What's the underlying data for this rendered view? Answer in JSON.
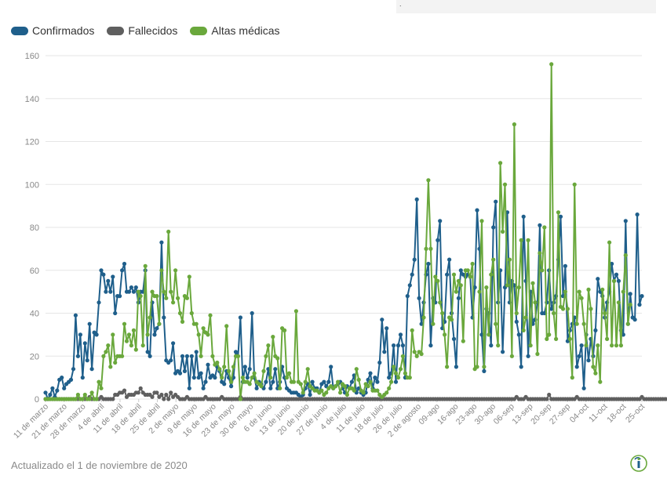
{
  "top_box_text": ".",
  "footer": "Actualizado el 1 de noviembre de 2020",
  "logo_icon": "health-ministry-logo-icon",
  "colors": {
    "confirmados": "#1f5f8b",
    "fallecidos": "#5f5f5f",
    "altas": "#6aa83c",
    "grid": "#e6e6e6",
    "tick": "#888888"
  },
  "chart_data": {
    "type": "line",
    "title": "",
    "xlabel": "",
    "ylabel": "",
    "ylim": [
      0,
      160
    ],
    "yticks": [
      0,
      20,
      40,
      60,
      80,
      100,
      120,
      140,
      160
    ],
    "grid": "horizontal",
    "legend_position": "top-left",
    "x_tick_labels": [
      "11 de marzo",
      "21 de marzo",
      "28 de marzo",
      "4 de abril",
      "11 de abril",
      "18 de abril",
      "25 de abril",
      "2 de mayo",
      "9 de mayo",
      "16 de mayo",
      "23 de mayo",
      "30 de mayo",
      "6 de junio",
      "13 de junio",
      "20 de junio",
      "27 de junio",
      "4 de julio",
      "11 de julio",
      "18 de julio",
      "26 de julio",
      "2 de agosto",
      "09-ago",
      "16-ago",
      "23-ago",
      "30-ago",
      "06-sep",
      "13-sep",
      "20-sep",
      "27-sep",
      "04-oct",
      "11-oct",
      "18-oct",
      "25-oct"
    ],
    "series": [
      {
        "name": "Confirmados",
        "values": [
          3,
          0,
          2,
          5,
          1,
          4,
          9,
          10,
          5,
          7,
          8,
          9,
          14,
          39,
          20,
          30,
          10,
          26,
          18,
          35,
          14,
          31,
          30,
          45,
          60,
          58,
          50,
          55,
          50,
          57,
          40,
          48,
          48,
          60,
          63,
          50,
          50,
          52,
          50,
          52,
          45,
          50,
          50,
          60,
          22,
          20,
          45,
          30,
          33,
          35,
          73,
          38,
          18,
          17,
          18,
          26,
          12,
          13,
          12,
          20,
          13,
          20,
          5,
          20,
          10,
          22,
          10,
          12,
          5,
          8,
          16,
          10,
          11,
          10,
          15,
          13,
          8,
          7,
          13,
          10,
          6,
          10,
          22,
          20,
          38,
          8,
          15,
          10,
          14,
          40,
          10,
          5,
          8,
          7,
          5,
          8,
          14,
          5,
          8,
          14,
          5,
          8,
          15,
          10,
          5,
          4,
          3,
          3,
          3,
          2,
          1,
          2,
          5,
          7,
          2,
          8,
          5,
          5,
          3,
          7,
          8,
          6,
          8,
          15,
          5,
          6,
          7,
          8,
          5,
          3,
          6,
          5,
          8,
          11,
          3,
          5,
          3,
          2,
          3,
          9,
          12,
          5,
          10,
          8,
          17,
          37,
          22,
          33,
          10,
          12,
          25,
          8,
          25,
          30,
          25,
          10,
          48,
          53,
          58,
          65,
          93,
          47,
          35,
          45,
          58,
          63,
          25,
          47,
          45,
          74,
          83,
          33,
          36,
          58,
          65,
          40,
          28,
          15,
          47,
          60,
          58,
          57,
          58,
          57,
          38,
          52,
          88,
          70,
          30,
          13,
          42,
          40,
          25,
          80,
          92,
          45,
          60,
          22,
          52,
          87,
          45,
          55,
          53,
          36,
          30,
          15,
          85,
          55,
          20,
          50,
          35,
          37,
          45,
          81,
          40,
          40,
          45,
          60,
          42,
          45,
          48,
          65,
          85,
          48,
          62,
          27,
          32,
          35,
          38,
          15,
          20,
          25,
          5,
          30,
          18,
          28,
          20,
          32,
          56,
          50,
          48,
          38,
          45,
          50,
          63,
          55,
          58,
          55,
          32,
          30,
          83,
          35,
          49,
          38,
          37,
          86,
          44,
          48
        ]
      },
      {
        "name": "Fallecidos",
        "values": [
          0,
          0,
          0,
          0,
          0,
          0,
          0,
          0,
          0,
          0,
          0,
          0,
          0,
          0,
          0,
          0,
          0,
          0,
          0,
          1,
          0,
          0,
          0,
          0,
          1,
          0,
          0,
          0,
          0,
          0,
          2,
          2,
          3,
          3,
          4,
          1,
          2,
          2,
          2,
          3,
          3,
          5,
          3,
          2,
          2,
          2,
          1,
          3,
          3,
          1,
          2,
          0,
          2,
          0,
          3,
          1,
          2,
          1,
          0,
          0,
          0,
          1,
          0,
          0,
          0,
          0,
          0,
          0,
          0,
          1,
          0,
          0,
          0,
          0,
          0,
          0,
          1,
          0,
          0,
          0,
          0,
          0,
          0,
          0,
          1,
          0,
          0,
          0,
          0,
          0,
          0,
          0,
          0,
          0,
          0,
          0,
          0,
          0,
          0,
          0,
          0,
          0,
          0,
          0,
          0,
          0,
          0,
          0,
          0,
          0,
          0,
          0,
          0,
          0,
          0,
          0,
          0,
          0,
          0,
          0,
          0,
          0,
          0,
          0,
          0,
          0,
          0,
          0,
          0,
          0,
          0,
          0,
          0,
          0,
          0,
          0,
          0,
          0,
          0,
          0,
          0,
          0,
          0,
          0,
          0,
          0,
          0,
          0,
          0,
          0,
          0,
          0,
          0,
          0,
          0,
          0,
          0,
          0,
          0,
          0,
          0,
          0,
          0,
          0,
          0,
          0,
          0,
          0,
          0,
          0,
          0,
          0,
          0,
          0,
          0,
          0,
          0,
          0,
          0,
          0,
          0,
          0,
          0,
          0,
          0,
          0,
          0,
          0,
          0,
          0,
          0,
          0,
          0,
          0,
          0,
          0,
          0,
          0,
          0,
          0,
          0,
          0,
          0,
          1,
          0,
          0,
          0,
          1,
          0,
          0,
          0,
          0,
          0,
          0,
          0,
          0,
          0,
          2,
          0,
          0,
          0,
          0,
          0,
          0,
          0,
          0,
          0,
          0,
          0,
          1,
          0,
          0,
          0,
          0,
          0,
          0,
          0,
          0,
          0,
          0,
          0,
          0,
          0,
          0,
          0,
          0,
          0,
          0,
          0,
          0,
          0,
          0,
          0,
          0,
          0,
          0,
          0,
          1,
          0,
          0,
          0,
          0,
          0,
          0,
          0,
          0,
          0,
          0,
          0
        ]
      },
      {
        "name": "Altas médicas",
        "values": [
          0,
          0,
          0,
          0,
          0,
          0,
          0,
          0,
          0,
          0,
          0,
          0,
          0,
          0,
          2,
          0,
          0,
          2,
          0,
          0,
          3,
          0,
          0,
          8,
          5,
          20,
          22,
          25,
          15,
          30,
          17,
          20,
          20,
          20,
          35,
          27,
          30,
          25,
          32,
          23,
          50,
          48,
          25,
          62,
          30,
          38,
          50,
          48,
          48,
          35,
          60,
          50,
          47,
          78,
          50,
          45,
          60,
          47,
          40,
          36,
          48,
          47,
          57,
          40,
          35,
          35,
          30,
          20,
          33,
          31,
          30,
          39,
          20,
          16,
          17,
          14,
          10,
          15,
          34,
          13,
          8,
          15,
          20,
          20,
          0,
          10,
          8,
          8,
          7,
          10,
          12,
          8,
          7,
          6,
          13,
          20,
          25,
          10,
          29,
          20,
          19,
          5,
          33,
          32,
          10,
          12,
          8,
          8,
          41,
          8,
          7,
          3,
          8,
          14,
          6,
          5,
          4,
          4,
          3,
          4,
          2,
          3,
          5,
          6,
          5,
          6,
          8,
          3,
          7,
          6,
          2,
          5,
          5,
          4,
          14,
          9,
          4,
          3,
          7,
          6,
          8,
          4,
          4,
          4,
          2,
          1,
          2,
          3,
          5,
          8,
          15,
          12,
          10,
          14,
          20,
          12,
          10,
          10,
          32,
          22,
          20,
          22,
          21,
          38,
          70,
          102,
          70,
          35,
          57,
          55,
          45,
          40,
          30,
          15,
          38,
          37,
          58,
          50,
          55,
          53,
          27,
          60,
          60,
          57,
          63,
          14,
          15,
          50,
          83,
          15,
          52,
          30,
          58,
          65,
          35,
          25,
          110,
          78,
          100,
          53,
          65,
          20,
          128,
          40,
          52,
          74,
          32,
          38,
          74,
          25,
          54,
          45,
          21,
          68,
          60,
          80,
          28,
          30,
          156,
          40,
          28,
          87,
          43,
          42,
          50,
          42,
          28,
          10,
          100,
          35,
          50,
          47,
          35,
          25,
          51,
          42,
          15,
          12,
          25,
          8,
          51,
          40,
          28,
          73,
          25,
          55,
          25,
          45,
          25,
          50,
          67,
          35,
          44
        ]
      }
    ]
  }
}
